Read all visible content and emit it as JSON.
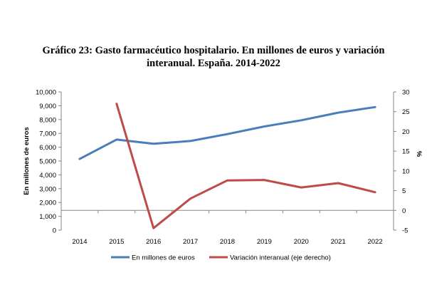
{
  "chart_data": {
    "type": "line",
    "title_line1": "Gráfico 23: Gasto farmacéutico hospitalario. En millones de euros y variación",
    "title_line2": "interanual. España. 2014-2022",
    "ylabel": "En millones de euros",
    "y2label": "%",
    "categories": [
      "2014",
      "2015",
      "2016",
      "2017",
      "2018",
      "2019",
      "2020",
      "2021",
      "2022"
    ],
    "ylim": [
      0,
      10000
    ],
    "y2lim": [
      -5,
      30
    ],
    "yticks": [
      "0",
      "1,000",
      "2,000",
      "3,000",
      "4,000",
      "5,000",
      "6,000",
      "7,000",
      "8,000",
      "9,000",
      "10,000"
    ],
    "y2ticks": [
      "-5",
      "0",
      "5",
      "10",
      "15",
      "20",
      "25",
      "30"
    ],
    "grid": false,
    "legend_position": "bottom",
    "series": [
      {
        "name": "En millones de euros",
        "axis": "left",
        "color": "#4a7ebb",
        "values": [
          null,
          null,
          null,
          null,
          null,
          null,
          null,
          null,
          null
        ]
      },
      {
        "name": "Variación interanual (eje derecho)",
        "axis": "right",
        "color": "#be4b48",
        "values": [
          null,
          27.0,
          -4.5,
          3.0,
          7.6,
          7.7,
          5.8,
          6.9,
          4.6
        ]
      }
    ]
  }
}
